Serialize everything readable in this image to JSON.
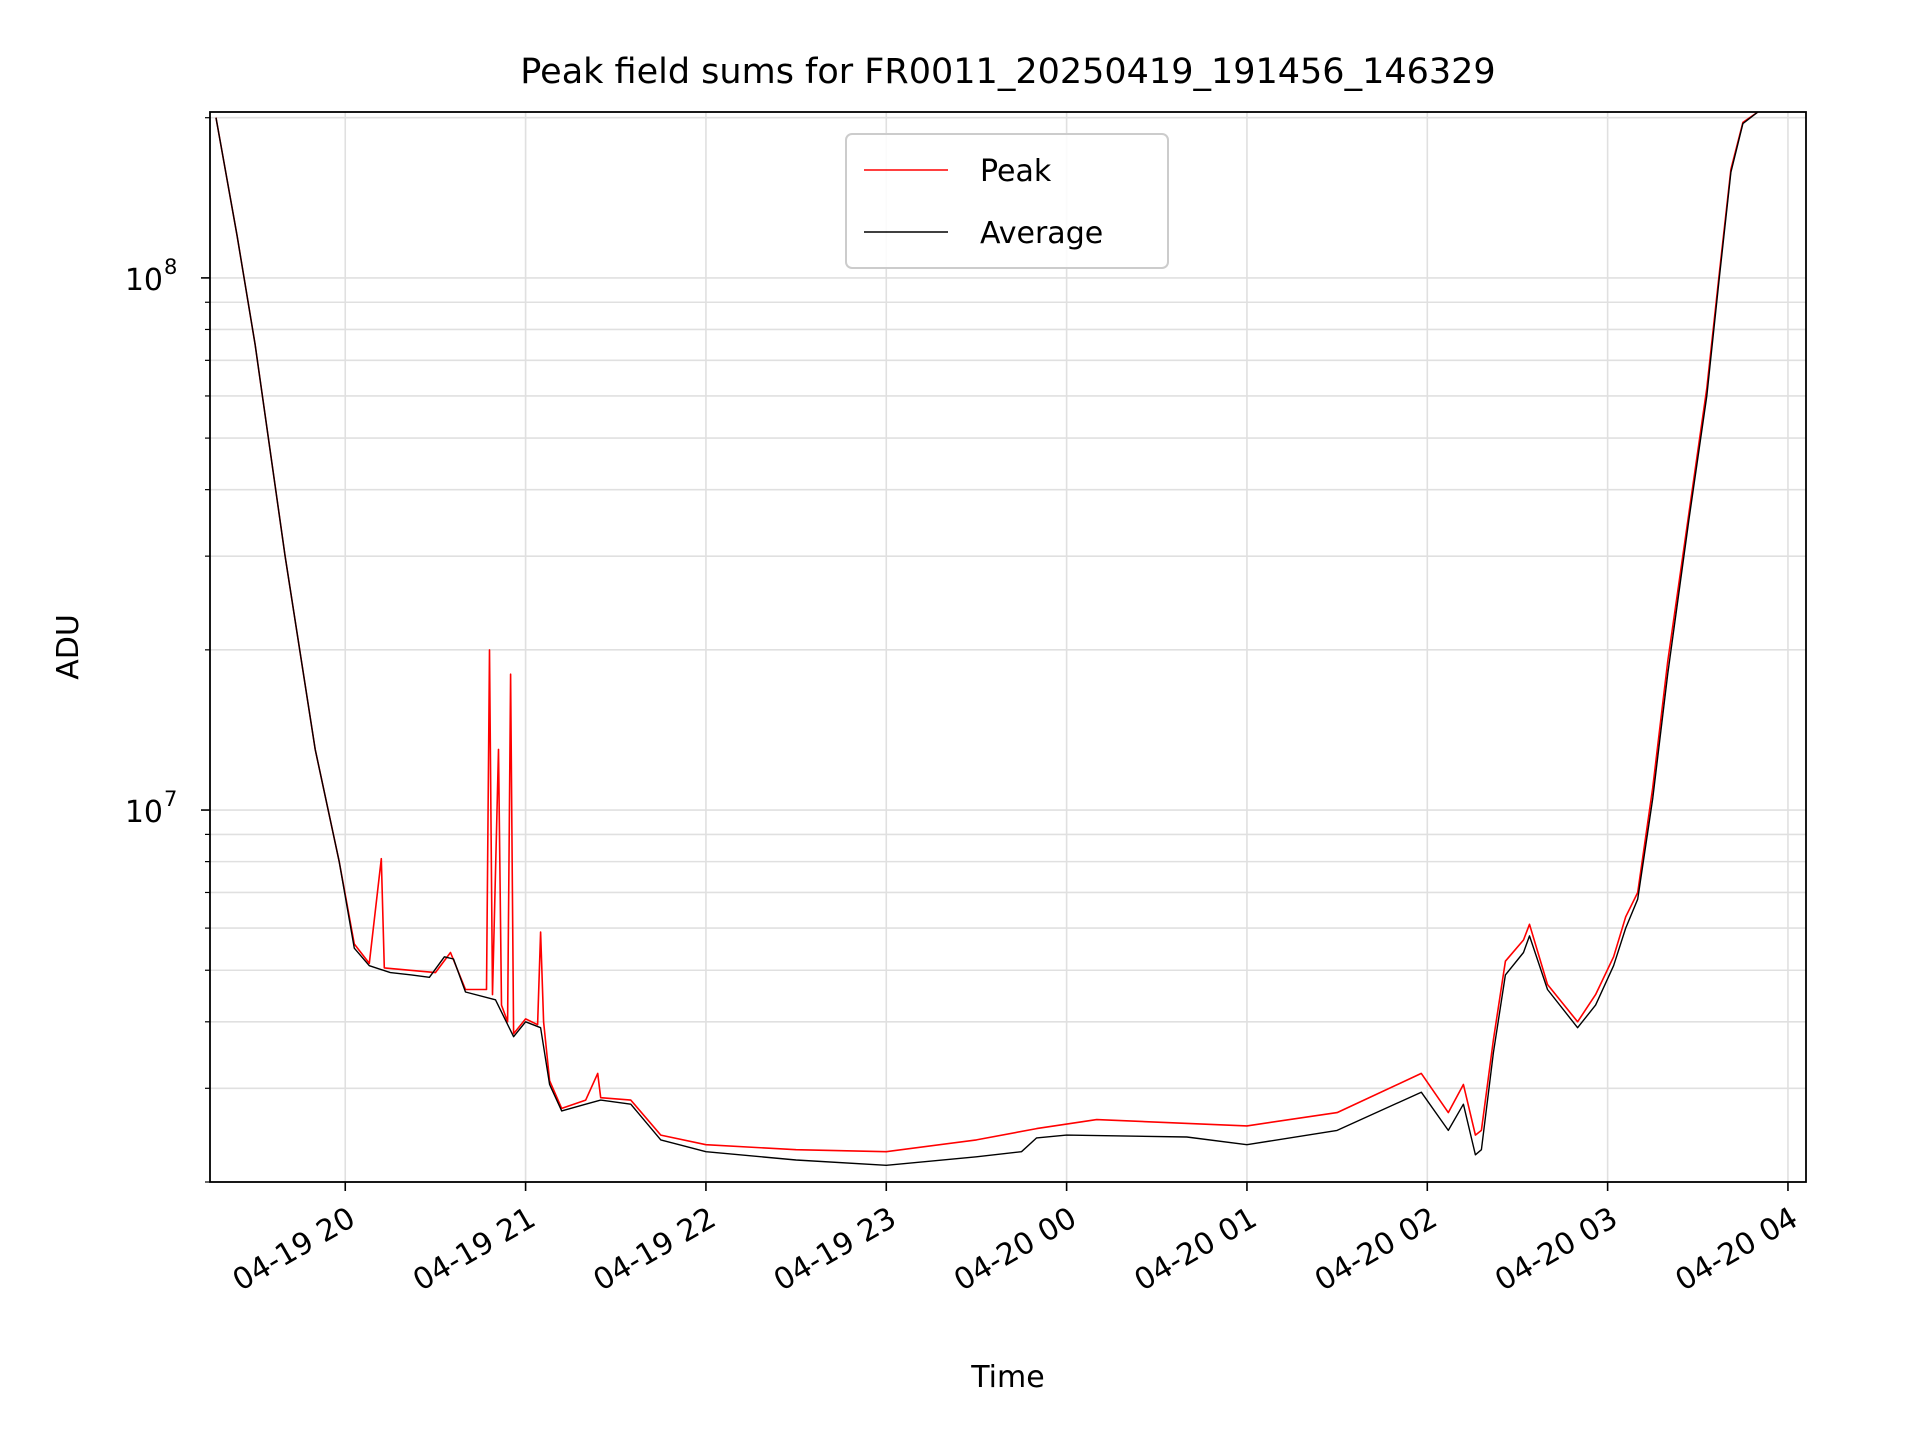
{
  "chart_data": {
    "type": "line",
    "title": "Peak field sums for FR0011_20250419_191456_146329",
    "xlabel": "Time",
    "ylabel": "ADU",
    "yscale": "log",
    "ylim": [
      2000000,
      205000000
    ],
    "xlim": [
      "2025-04-19 19:15",
      "2025-04-20 04:06"
    ],
    "grid": true,
    "legend_position": "top-center",
    "x_ticks": [
      {
        "t": "2025-04-19 20:00",
        "label": "04-19 20"
      },
      {
        "t": "2025-04-19 21:00",
        "label": "04-19 21"
      },
      {
        "t": "2025-04-19 22:00",
        "label": "04-19 22"
      },
      {
        "t": "2025-04-19 23:00",
        "label": "04-19 23"
      },
      {
        "t": "2025-04-20 00:00",
        "label": "04-20 00"
      },
      {
        "t": "2025-04-20 01:00",
        "label": "04-20 01"
      },
      {
        "t": "2025-04-20 02:00",
        "label": "04-20 02"
      },
      {
        "t": "2025-04-20 03:00",
        "label": "04-20 03"
      },
      {
        "t": "2025-04-20 04:00",
        "label": "04-20 04"
      }
    ],
    "y_ticks": [
      {
        "value": 10000000,
        "base": "10",
        "exp": "7"
      },
      {
        "value": 100000000,
        "base": "10",
        "exp": "8"
      }
    ],
    "series": [
      {
        "name": "Peak",
        "color": "#ff0000",
        "points": [
          [
            "2025-04-19 19:17",
            200000000
          ],
          [
            "2025-04-19 19:24",
            120000000
          ],
          [
            "2025-04-19 19:30",
            75000000
          ],
          [
            "2025-04-19 19:40",
            30000000
          ],
          [
            "2025-04-19 19:50",
            13000000
          ],
          [
            "2025-04-19 19:58",
            8000000
          ],
          [
            "2025-04-19 20:03",
            5600000
          ],
          [
            "2025-04-19 20:08",
            5150000
          ],
          [
            "2025-04-19 20:12",
            8100000
          ],
          [
            "2025-04-19 20:13",
            5050000
          ],
          [
            "2025-04-19 20:30",
            4950000
          ],
          [
            "2025-04-19 20:35",
            5400000
          ],
          [
            "2025-04-19 20:40",
            4600000
          ],
          [
            "2025-04-19 20:47",
            4600000
          ],
          [
            "2025-04-19 20:48",
            20000000
          ],
          [
            "2025-04-19 20:49",
            4500000
          ],
          [
            "2025-04-19 20:51",
            13000000
          ],
          [
            "2025-04-19 20:52",
            4300000
          ],
          [
            "2025-04-19 20:54",
            4000000
          ],
          [
            "2025-04-19 20:55",
            18000000
          ],
          [
            "2025-04-19 20:56",
            3800000
          ],
          [
            "2025-04-19 21:00",
            4050000
          ],
          [
            "2025-04-19 21:04",
            3950000
          ],
          [
            "2025-04-19 21:05",
            5900000
          ],
          [
            "2025-04-19 21:06",
            4000000
          ],
          [
            "2025-04-19 21:08",
            3100000
          ],
          [
            "2025-04-19 21:12",
            2750000
          ],
          [
            "2025-04-19 21:20",
            2850000
          ],
          [
            "2025-04-19 21:24",
            3200000
          ],
          [
            "2025-04-19 21:25",
            2880000
          ],
          [
            "2025-04-19 21:35",
            2850000
          ],
          [
            "2025-04-19 21:45",
            2450000
          ],
          [
            "2025-04-19 22:00",
            2350000
          ],
          [
            "2025-04-19 22:30",
            2300000
          ],
          [
            "2025-04-19 23:00",
            2280000
          ],
          [
            "2025-04-19 23:30",
            2400000
          ],
          [
            "2025-04-19 23:50",
            2520000
          ],
          [
            "2025-04-20 00:10",
            2620000
          ],
          [
            "2025-04-20 01:00",
            2550000
          ],
          [
            "2025-04-20 01:30",
            2700000
          ],
          [
            "2025-04-20 01:58",
            3200000
          ],
          [
            "2025-04-20 02:07",
            2700000
          ],
          [
            "2025-04-20 02:12",
            3050000
          ],
          [
            "2025-04-20 02:16",
            2450000
          ],
          [
            "2025-04-20 02:18",
            2500000
          ],
          [
            "2025-04-20 02:22",
            3700000
          ],
          [
            "2025-04-20 02:26",
            5200000
          ],
          [
            "2025-04-20 02:32",
            5700000
          ],
          [
            "2025-04-20 02:34",
            6100000
          ],
          [
            "2025-04-20 02:40",
            4700000
          ],
          [
            "2025-04-20 02:50",
            4000000
          ],
          [
            "2025-04-20 02:56",
            4500000
          ],
          [
            "2025-04-20 03:02",
            5300000
          ],
          [
            "2025-04-20 03:06",
            6300000
          ],
          [
            "2025-04-20 03:10",
            7000000
          ],
          [
            "2025-04-20 03:15",
            11000000
          ],
          [
            "2025-04-20 03:20",
            19000000
          ],
          [
            "2025-04-20 03:27",
            36000000
          ],
          [
            "2025-04-20 03:33",
            62000000
          ],
          [
            "2025-04-20 03:37",
            100000000
          ],
          [
            "2025-04-20 03:41",
            160000000
          ],
          [
            "2025-04-20 03:45",
            196000000
          ],
          [
            "2025-04-20 03:50",
            205000000
          ]
        ]
      },
      {
        "name": "Average",
        "color": "#000000",
        "points": [
          [
            "2025-04-19 19:17",
            200000000
          ],
          [
            "2025-04-19 19:24",
            120000000
          ],
          [
            "2025-04-19 19:30",
            75000000
          ],
          [
            "2025-04-19 19:40",
            30000000
          ],
          [
            "2025-04-19 19:50",
            13000000
          ],
          [
            "2025-04-19 19:58",
            8000000
          ],
          [
            "2025-04-19 20:03",
            5500000
          ],
          [
            "2025-04-19 20:08",
            5100000
          ],
          [
            "2025-04-19 20:15",
            4950000
          ],
          [
            "2025-04-19 20:22",
            4900000
          ],
          [
            "2025-04-19 20:28",
            4850000
          ],
          [
            "2025-04-19 20:33",
            5300000
          ],
          [
            "2025-04-19 20:36",
            5250000
          ],
          [
            "2025-04-19 20:40",
            4550000
          ],
          [
            "2025-04-19 20:50",
            4400000
          ],
          [
            "2025-04-19 20:56",
            3750000
          ],
          [
            "2025-04-19 21:00",
            4000000
          ],
          [
            "2025-04-19 21:05",
            3900000
          ],
          [
            "2025-04-19 21:08",
            3050000
          ],
          [
            "2025-04-19 21:12",
            2720000
          ],
          [
            "2025-04-19 21:20",
            2800000
          ],
          [
            "2025-04-19 21:25",
            2850000
          ],
          [
            "2025-04-19 21:35",
            2800000
          ],
          [
            "2025-04-19 21:45",
            2400000
          ],
          [
            "2025-04-19 22:00",
            2280000
          ],
          [
            "2025-04-19 22:30",
            2200000
          ],
          [
            "2025-04-19 23:00",
            2150000
          ],
          [
            "2025-04-19 23:30",
            2230000
          ],
          [
            "2025-04-19 23:45",
            2280000
          ],
          [
            "2025-04-19 23:50",
            2420000
          ],
          [
            "2025-04-20 00:00",
            2450000
          ],
          [
            "2025-04-20 00:40",
            2430000
          ],
          [
            "2025-04-20 01:00",
            2350000
          ],
          [
            "2025-04-20 01:30",
            2500000
          ],
          [
            "2025-04-20 01:58",
            2950000
          ],
          [
            "2025-04-20 02:07",
            2500000
          ],
          [
            "2025-04-20 02:12",
            2800000
          ],
          [
            "2025-04-20 02:16",
            2250000
          ],
          [
            "2025-04-20 02:18",
            2300000
          ],
          [
            "2025-04-20 02:22",
            3500000
          ],
          [
            "2025-04-20 02:26",
            4900000
          ],
          [
            "2025-04-20 02:32",
            5400000
          ],
          [
            "2025-04-20 02:34",
            5800000
          ],
          [
            "2025-04-20 02:40",
            4600000
          ],
          [
            "2025-04-20 02:50",
            3900000
          ],
          [
            "2025-04-20 02:56",
            4300000
          ],
          [
            "2025-04-20 03:02",
            5100000
          ],
          [
            "2025-04-20 03:06",
            6000000
          ],
          [
            "2025-04-20 03:10",
            6800000
          ],
          [
            "2025-04-20 03:15",
            10500000
          ],
          [
            "2025-04-20 03:20",
            18000000
          ],
          [
            "2025-04-20 03:27",
            35000000
          ],
          [
            "2025-04-20 03:33",
            60000000
          ],
          [
            "2025-04-20 03:37",
            98000000
          ],
          [
            "2025-04-20 03:41",
            158000000
          ],
          [
            "2025-04-20 03:45",
            195000000
          ],
          [
            "2025-04-20 03:50",
            205000000
          ]
        ]
      }
    ]
  }
}
